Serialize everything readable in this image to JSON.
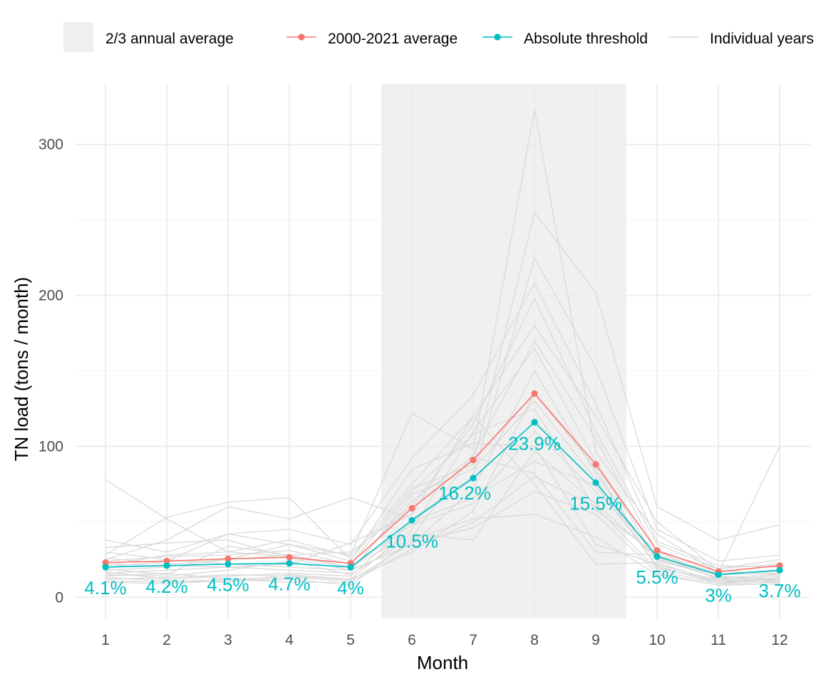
{
  "chart_data": {
    "type": "line",
    "xlabel": "Month",
    "ylabel": "TN load (tons / month)",
    "x": [
      1,
      2,
      3,
      4,
      5,
      6,
      7,
      8,
      9,
      10,
      11,
      12
    ],
    "xlim": [
      0.5,
      12.5
    ],
    "ylim": [
      -14,
      340
    ],
    "y_ticks": [
      0,
      100,
      200,
      300
    ],
    "grid": true,
    "legend_position": "top",
    "highlight_band": {
      "name": "2/3 annual average",
      "x_range": [
        5.5,
        9.5
      ],
      "color": "#f0f0f0"
    },
    "legend": [
      {
        "label": "2/3 annual average",
        "kind": "band",
        "color": "#f0f0f0"
      },
      {
        "label": "2000-2021 average",
        "kind": "line-point",
        "color": "#f8766d"
      },
      {
        "label": "Absolute threshold",
        "kind": "line-point",
        "color": "#00bfc4"
      },
      {
        "label": "Individual years",
        "kind": "line",
        "color": "#d9d9d9"
      }
    ],
    "series": [
      {
        "name": "2000-2021 average",
        "color": "#f8766d",
        "values": [
          23,
          24,
          25.5,
          26.5,
          22.5,
          59,
          91,
          135,
          88,
          31,
          17,
          21
        ]
      },
      {
        "name": "Absolute threshold",
        "color": "#00bfc4",
        "values": [
          20,
          21,
          22,
          22.5,
          20,
          51,
          79,
          116,
          76,
          27,
          15,
          18
        ]
      }
    ],
    "threshold_percent_labels": [
      "4.1%",
      "4.2%",
      "4.5%",
      "4.7%",
      "4%",
      "10.5%",
      "16.2%",
      "23.9%",
      "15.5%",
      "5.5%",
      "3%",
      "3.7%"
    ],
    "individual_years": [
      [
        78,
        52,
        30,
        27,
        20,
        48,
        62,
        110,
        70,
        30,
        19,
        25
      ],
      [
        38,
        30,
        42,
        35,
        28,
        122,
        98,
        323,
        96,
        42,
        16,
        100
      ],
      [
        28,
        53,
        63,
        66,
        25,
        72,
        88,
        255,
        202,
        60,
        38,
        48
      ],
      [
        25,
        38,
        60,
        52,
        66,
        52,
        80,
        225,
        152,
        45,
        24,
        28
      ],
      [
        20,
        24,
        42,
        45,
        35,
        92,
        134,
        208,
        128,
        37,
        21,
        20
      ],
      [
        18,
        20,
        25,
        28,
        30,
        60,
        115,
        198,
        110,
        35,
        19,
        22
      ],
      [
        22,
        21,
        20,
        22,
        36,
        55,
        120,
        180,
        120,
        50,
        18,
        15
      ],
      [
        15,
        14,
        18,
        24,
        15,
        40,
        95,
        170,
        105,
        30,
        14,
        12
      ],
      [
        12,
        13,
        15,
        14,
        12,
        45,
        110,
        165,
        90,
        25,
        13,
        11
      ],
      [
        30,
        25,
        22,
        20,
        18,
        35,
        72,
        150,
        82,
        24,
        15,
        16
      ],
      [
        24,
        27,
        28,
        31,
        22,
        70,
        108,
        125,
        58,
        28,
        12,
        14
      ],
      [
        16,
        18,
        20,
        18,
        16,
        68,
        85,
        130,
        78,
        20,
        10,
        13
      ],
      [
        26,
        22,
        25,
        35,
        24,
        85,
        102,
        100,
        35,
        22,
        11,
        12
      ],
      [
        14,
        16,
        12,
        10,
        10,
        32,
        50,
        80,
        60,
        18,
        9,
        10
      ],
      [
        19,
        15,
        34,
        28,
        20,
        42,
        38,
        97,
        62,
        26,
        13,
        15
      ],
      [
        10,
        9,
        11,
        12,
        8,
        38,
        52,
        55,
        40,
        15,
        8,
        9
      ],
      [
        21,
        28,
        30,
        38,
        27,
        75,
        120,
        75,
        22,
        23,
        10,
        11
      ],
      [
        17,
        12,
        14,
        16,
        14,
        50,
        66,
        90,
        74,
        21,
        9,
        13
      ],
      [
        13,
        11,
        10,
        15,
        12,
        30,
        57,
        135,
        85,
        19,
        12,
        10
      ],
      [
        33,
        36,
        38,
        26,
        18,
        64,
        93,
        82,
        30,
        28,
        16,
        17
      ],
      [
        11,
        10,
        12,
        13,
        11,
        36,
        46,
        70,
        55,
        16,
        8,
        9
      ]
    ]
  }
}
